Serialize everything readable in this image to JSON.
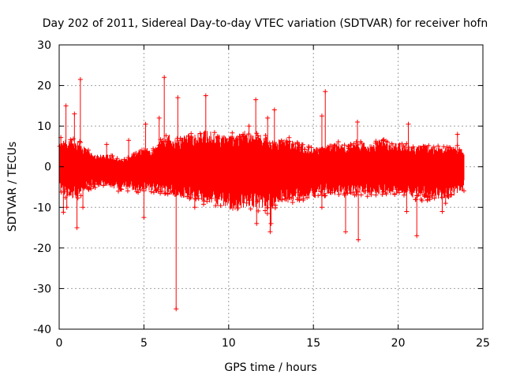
{
  "chart_data": {
    "type": "scatter",
    "title": "Day 202 of 2011, Sidereal Day-to-day VTEC variation (SDTVAR) for receiver hofn",
    "xlabel": "GPS time / hours",
    "ylabel": "SDTVAR / TECUs",
    "xlim": [
      0,
      25
    ],
    "ylim": [
      -40,
      30
    ],
    "xticks": [
      "0",
      "5",
      "10",
      "15",
      "20",
      "25"
    ],
    "yticks": [
      "30",
      "20",
      "10",
      "0",
      "-10",
      "-20",
      "-30",
      "-40"
    ],
    "grid": true,
    "marker": "+",
    "series_color": "#ff0000",
    "series": [
      {
        "name": "SDTVAR",
        "envelope": {
          "x": [
            0.0,
            0.5,
            1.0,
            1.5,
            2.0,
            2.5,
            3.0,
            3.5,
            4.0,
            4.5,
            5.0,
            5.5,
            6.0,
            6.5,
            7.0,
            7.5,
            8.0,
            8.5,
            9.0,
            9.5,
            10.0,
            10.5,
            11.0,
            11.5,
            12.0,
            12.5,
            13.0,
            13.5,
            14.0,
            14.5,
            15.0,
            15.5,
            16.0,
            16.5,
            17.0,
            17.5,
            18.0,
            18.5,
            19.0,
            19.5,
            20.0,
            20.5,
            21.0,
            21.5,
            22.0,
            22.5,
            23.0,
            23.5,
            23.9
          ],
          "upper": [
            6,
            7,
            7,
            5,
            3,
            3,
            3,
            2,
            2,
            4,
            5,
            4,
            7,
            8,
            7,
            8,
            8,
            9,
            9,
            8,
            8,
            8,
            9,
            8,
            8,
            7,
            7,
            7,
            6,
            5,
            5,
            5,
            6,
            6,
            5,
            6,
            6,
            6,
            7,
            6,
            6,
            6,
            5,
            6,
            5,
            5,
            5,
            5,
            4
          ],
          "lower": [
            -6,
            -8,
            -8,
            -6,
            -5,
            -5,
            -5,
            -6,
            -6,
            -6,
            -6,
            -6,
            -7,
            -7,
            -8,
            -8,
            -8,
            -9,
            -9,
            -10,
            -11,
            -11,
            -10,
            -10,
            -11,
            -11,
            -9,
            -9,
            -8,
            -8,
            -8,
            -7,
            -7,
            -7,
            -7,
            -7,
            -7,
            -7,
            -7,
            -7,
            -7,
            -7,
            -8,
            -8,
            -8,
            -8,
            -8,
            -7,
            -6
          ]
        },
        "outliers": [
          {
            "x": 0.1,
            "y": 7.2
          },
          {
            "x": 0.25,
            "y": -11.2
          },
          {
            "x": 0.4,
            "y": 15.0
          },
          {
            "x": 0.45,
            "y": -10.0
          },
          {
            "x": 0.9,
            "y": 13.0
          },
          {
            "x": 1.05,
            "y": -15.0
          },
          {
            "x": 1.25,
            "y": 21.5
          },
          {
            "x": 1.4,
            "y": -10.0
          },
          {
            "x": 2.8,
            "y": 5.5
          },
          {
            "x": 4.1,
            "y": 6.5
          },
          {
            "x": 5.1,
            "y": 10.5
          },
          {
            "x": 5.0,
            "y": -12.5
          },
          {
            "x": 5.9,
            "y": 12.0
          },
          {
            "x": 6.2,
            "y": 22.0
          },
          {
            "x": 6.9,
            "y": -35.0
          },
          {
            "x": 7.0,
            "y": 17.0
          },
          {
            "x": 8.0,
            "y": -10.0
          },
          {
            "x": 8.65,
            "y": 17.5
          },
          {
            "x": 11.2,
            "y": 10.0
          },
          {
            "x": 11.6,
            "y": 16.5
          },
          {
            "x": 11.65,
            "y": -14.0
          },
          {
            "x": 12.3,
            "y": 12.0
          },
          {
            "x": 12.45,
            "y": -16.0
          },
          {
            "x": 12.7,
            "y": 14.0
          },
          {
            "x": 12.5,
            "y": -14.0
          },
          {
            "x": 15.5,
            "y": 12.5
          },
          {
            "x": 15.7,
            "y": 18.5
          },
          {
            "x": 15.5,
            "y": -10.0
          },
          {
            "x": 16.9,
            "y": -16.0
          },
          {
            "x": 17.6,
            "y": 11.0
          },
          {
            "x": 17.65,
            "y": -18.0
          },
          {
            "x": 20.6,
            "y": 10.5
          },
          {
            "x": 20.5,
            "y": -11.0
          },
          {
            "x": 21.1,
            "y": -17.0
          },
          {
            "x": 22.6,
            "y": -11.0
          },
          {
            "x": 22.8,
            "y": -9.0
          },
          {
            "x": 23.5,
            "y": 8.0
          }
        ]
      }
    ]
  }
}
